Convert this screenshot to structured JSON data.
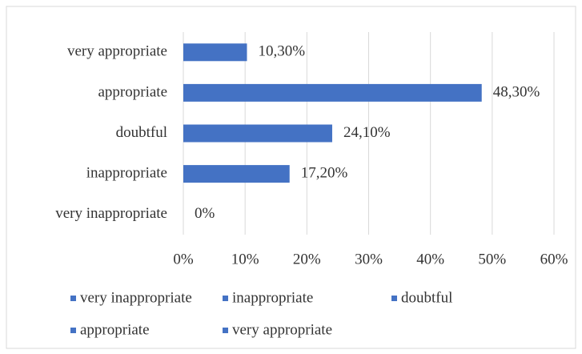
{
  "chart_data": {
    "type": "bar",
    "orientation": "horizontal",
    "categories": [
      "very inappropriate",
      "inappropriate",
      "doubtful",
      "appropriate",
      "very appropriate"
    ],
    "values": [
      0,
      17.2,
      24.1,
      48.3,
      10.3
    ],
    "value_labels": [
      "0%",
      "17,20%",
      "24,10%",
      "48,30%",
      "10,30%"
    ],
    "color": "#4472c4",
    "xlim": [
      0,
      60
    ],
    "xticks": [
      {
        "value": 0,
        "label": "0%"
      },
      {
        "value": 10,
        "label": "10%"
      },
      {
        "value": 20,
        "label": "20%"
      },
      {
        "value": 30,
        "label": "30%"
      },
      {
        "value": 40,
        "label": "40%"
      },
      {
        "value": 50,
        "label": "50%"
      },
      {
        "value": 60,
        "label": "60%"
      }
    ],
    "grid": true,
    "legend": "bottom"
  }
}
